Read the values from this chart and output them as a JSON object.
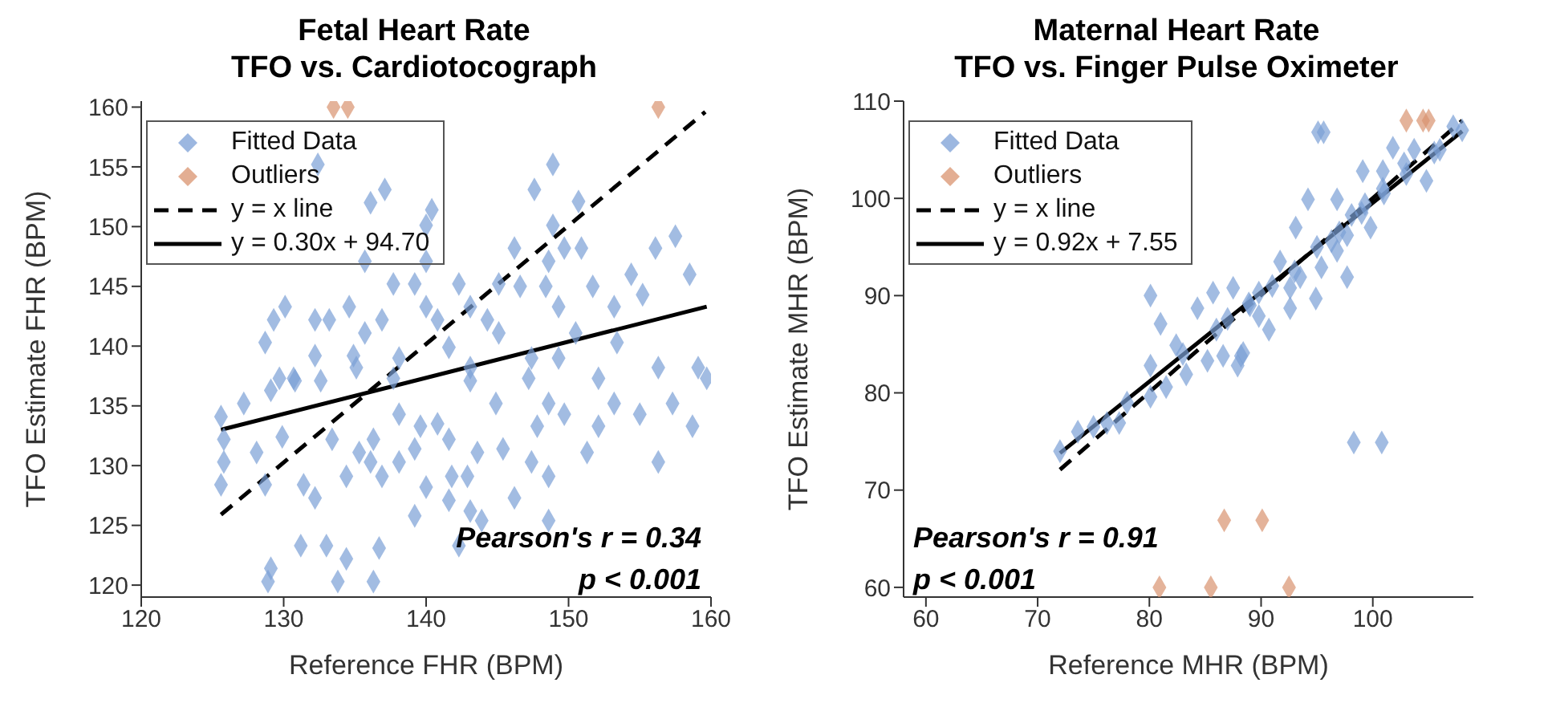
{
  "chart_data": [
    {
      "type": "scatter",
      "title": "Fetal Heart Rate\nTFO vs. Cardiotocograph",
      "xlabel": "Reference FHR (BPM)",
      "ylabel": "TFO Estimate FHR (BPM)",
      "xlim": [
        120,
        160
      ],
      "ylim": [
        119,
        160.5
      ],
      "xticks": [
        120,
        130,
        140,
        150,
        160
      ],
      "yticks": [
        120,
        125,
        130,
        135,
        140,
        145,
        150,
        155,
        160
      ],
      "grid": false,
      "legend": "top left",
      "annotations": [
        "Pearson's r = 0.34",
        "p < 0.001"
      ],
      "series": [
        {
          "name": "Fitted Data",
          "type": "scatter",
          "marker": "diamond",
          "color": "#7b9fd6",
          "x": [
            132.4,
            148.9,
            137.1,
            136.1,
            147.6,
            140.4,
            150.7,
            140.0,
            148.9,
            157.5,
            156.1,
            146.2,
            150.9,
            149.7,
            135.7,
            140.0,
            148.6,
            154.4,
            158.5,
            137.7,
            139.2,
            142.3,
            145.1,
            146.6,
            148.4,
            151.7,
            155.2,
            134.6,
            130.1,
            136.9,
            140.0,
            143.1,
            149.3,
            153.2,
            129.3,
            132.2,
            133.2,
            140.8,
            144.3,
            128.7,
            135.7,
            145.1,
            150.5,
            153.4,
            132.2,
            134.9,
            138.1,
            141.6,
            147.4,
            149.3,
            135.1,
            156.3,
            159.1,
            159.7,
            143.1,
            152.1,
            129.7,
            130.7,
            137.7,
            147.2,
            125.6,
            127.2,
            129.1,
            130.8,
            132.6,
            129.9,
            125.8,
            128.1,
            125.8,
            125.6,
            128.7,
            131.4,
            132.2,
            131.2,
            133.0,
            134.4,
            129.1,
            128.9,
            133.8,
            136.3,
            136.7,
            134.4,
            136.1,
            136.9,
            138.1,
            140.0,
            141.8,
            142.9,
            141.6,
            143.1,
            143.9,
            146.2,
            147.4,
            148.6,
            151.3,
            156.3,
            158.7,
            157.3,
            155.0,
            153.2,
            152.1,
            149.7,
            147.8,
            145.4,
            143.6,
            141.6,
            139.2,
            136.3,
            135.3,
            133.4,
            138.1,
            139.6,
            140.8,
            144.9,
            148.6,
            143.1,
            148.6,
            142.3,
            139.2
          ],
          "values": [
            155.2,
            155.2,
            153.1,
            152.0,
            153.1,
            151.4,
            152.1,
            150.1,
            150.1,
            149.2,
            148.2,
            148.2,
            148.2,
            148.2,
            147.1,
            147.1,
            147.1,
            146.0,
            146.0,
            145.2,
            145.2,
            145.2,
            145.2,
            145.0,
            145.0,
            145.0,
            144.3,
            143.3,
            143.3,
            142.2,
            143.3,
            143.3,
            143.3,
            143.3,
            142.2,
            142.2,
            142.2,
            142.2,
            142.2,
            140.3,
            141.1,
            141.1,
            141.1,
            140.3,
            139.2,
            139.2,
            139.0,
            139.9,
            139.0,
            139.0,
            138.2,
            138.2,
            138.2,
            137.3,
            138.2,
            137.3,
            137.3,
            137.3,
            137.3,
            137.3,
            134.1,
            135.2,
            136.3,
            137.1,
            137.1,
            132.4,
            132.2,
            131.1,
            130.3,
            128.4,
            128.4,
            128.4,
            127.3,
            123.3,
            123.3,
            122.2,
            121.4,
            120.3,
            120.3,
            120.3,
            123.1,
            129.1,
            130.3,
            129.1,
            130.3,
            128.2,
            129.1,
            129.1,
            127.1,
            126.2,
            125.4,
            127.3,
            130.3,
            129.1,
            131.1,
            130.3,
            133.3,
            135.2,
            134.3,
            135.2,
            133.3,
            134.3,
            133.3,
            131.4,
            131.1,
            132.2,
            131.4,
            132.2,
            131.1,
            132.2,
            134.3,
            133.3,
            133.5,
            135.2,
            135.2,
            137.1,
            125.4,
            123.3,
            125.8
          ]
        },
        {
          "name": "Outliers",
          "type": "scatter",
          "marker": "diamond",
          "color": "#d9936f",
          "x": [
            133.5,
            134.5,
            156.3
          ],
          "values": [
            160,
            160,
            160
          ]
        },
        {
          "name": "y = x line",
          "type": "line",
          "line_style": "dashed",
          "color": "#000000",
          "x": [
            125.6,
            159.6
          ],
          "values": [
            125.9,
            159.6
          ]
        },
        {
          "name": "y = 0.30x + 94.70",
          "type": "line",
          "line_style": "solid",
          "color": "#000000",
          "x": [
            125.6,
            159.7
          ],
          "values": [
            133.0,
            143.3
          ]
        }
      ]
    },
    {
      "type": "scatter",
      "title": "Maternal Heart Rate\nTFO vs. Finger Pulse Oximeter",
      "xlabel": "Reference MHR (BPM)",
      "ylabel": "TFO Estimate MHR (BPM)",
      "xlim": [
        58,
        109
      ],
      "ylim": [
        59,
        110
      ],
      "xticks": [
        60,
        70,
        80,
        90,
        100
      ],
      "yticks": [
        60,
        70,
        80,
        90,
        100,
        110
      ],
      "grid": false,
      "legend": "top left",
      "annotations": [
        "Pearson's r = 0.91",
        "p < 0.001"
      ],
      "series": [
        {
          "name": "Fitted Data",
          "type": "scatter",
          "marker": "diamond",
          "color": "#7b9fd6",
          "x": [
            98.3,
            100.8,
            95.1,
            95.6,
            72.0,
            73.6,
            76.2,
            77.3,
            80.1,
            80.1,
            81.5,
            83.3,
            86.6,
            88.2,
            87.9,
            80.1,
            81.0,
            84.3,
            85.7,
            87.5,
            89.8,
            93.5,
            97.7,
            95.4,
            93.1,
            94.2,
            96.8,
            99.1,
            100.9,
            99.8,
            104.8,
            103.7,
            107.2,
            101.8,
            85.2,
            82.4,
            88.4,
            90.7,
            92.6,
            94.9,
            91.7,
            96.3,
            98.1,
            100.9,
            102.8,
            105.5,
            89.8,
            87.0,
            88.9,
            96.8,
            92.6,
            97.7,
            99.3,
            75.0,
            78.0,
            83.0,
            86.0,
            89.0,
            91.0,
            93.0,
            95.0,
            97.0,
            99.0,
            101.0,
            103.0,
            106.0,
            108.0
          ],
          "values": [
            74.9,
            74.9,
            106.8,
            106.8,
            74.0,
            76.0,
            76.9,
            76.9,
            82.8,
            79.6,
            80.6,
            81.9,
            83.8,
            83.8,
            82.8,
            90.0,
            87.1,
            88.7,
            90.3,
            90.8,
            90.3,
            91.9,
            91.9,
            92.9,
            97.0,
            99.9,
            99.9,
            102.8,
            102.8,
            97.0,
            101.8,
            105.0,
            107.4,
            105.2,
            83.3,
            84.9,
            84.1,
            86.5,
            88.7,
            89.7,
            93.5,
            95.6,
            98.3,
            101.0,
            103.6,
            104.7,
            87.9,
            87.6,
            89.2,
            94.6,
            90.8,
            96.2,
            99.4,
            76.5,
            79.0,
            84.0,
            86.5,
            89.0,
            91.0,
            92.5,
            95.0,
            96.5,
            98.5,
            100.5,
            102.5,
            105.0,
            107.0
          ]
        },
        {
          "name": "Outliers",
          "type": "scatter",
          "marker": "diamond",
          "color": "#d9936f",
          "x": [
            103.0,
            104.5,
            105.0,
            86.7,
            90.1,
            80.9,
            85.5,
            92.5
          ],
          "values": [
            108,
            108,
            108,
            66.9,
            66.9,
            60,
            60,
            60
          ]
        },
        {
          "name": "y = x line",
          "type": "line",
          "line_style": "dashed",
          "color": "#000000",
          "x": [
            72.0,
            108.0
          ],
          "values": [
            72.1,
            108.0
          ]
        },
        {
          "name": "y = 0.92x + 7.55",
          "type": "line",
          "line_style": "solid",
          "color": "#000000",
          "x": [
            72.0,
            108.0
          ],
          "values": [
            73.8,
            106.9
          ]
        }
      ]
    }
  ]
}
